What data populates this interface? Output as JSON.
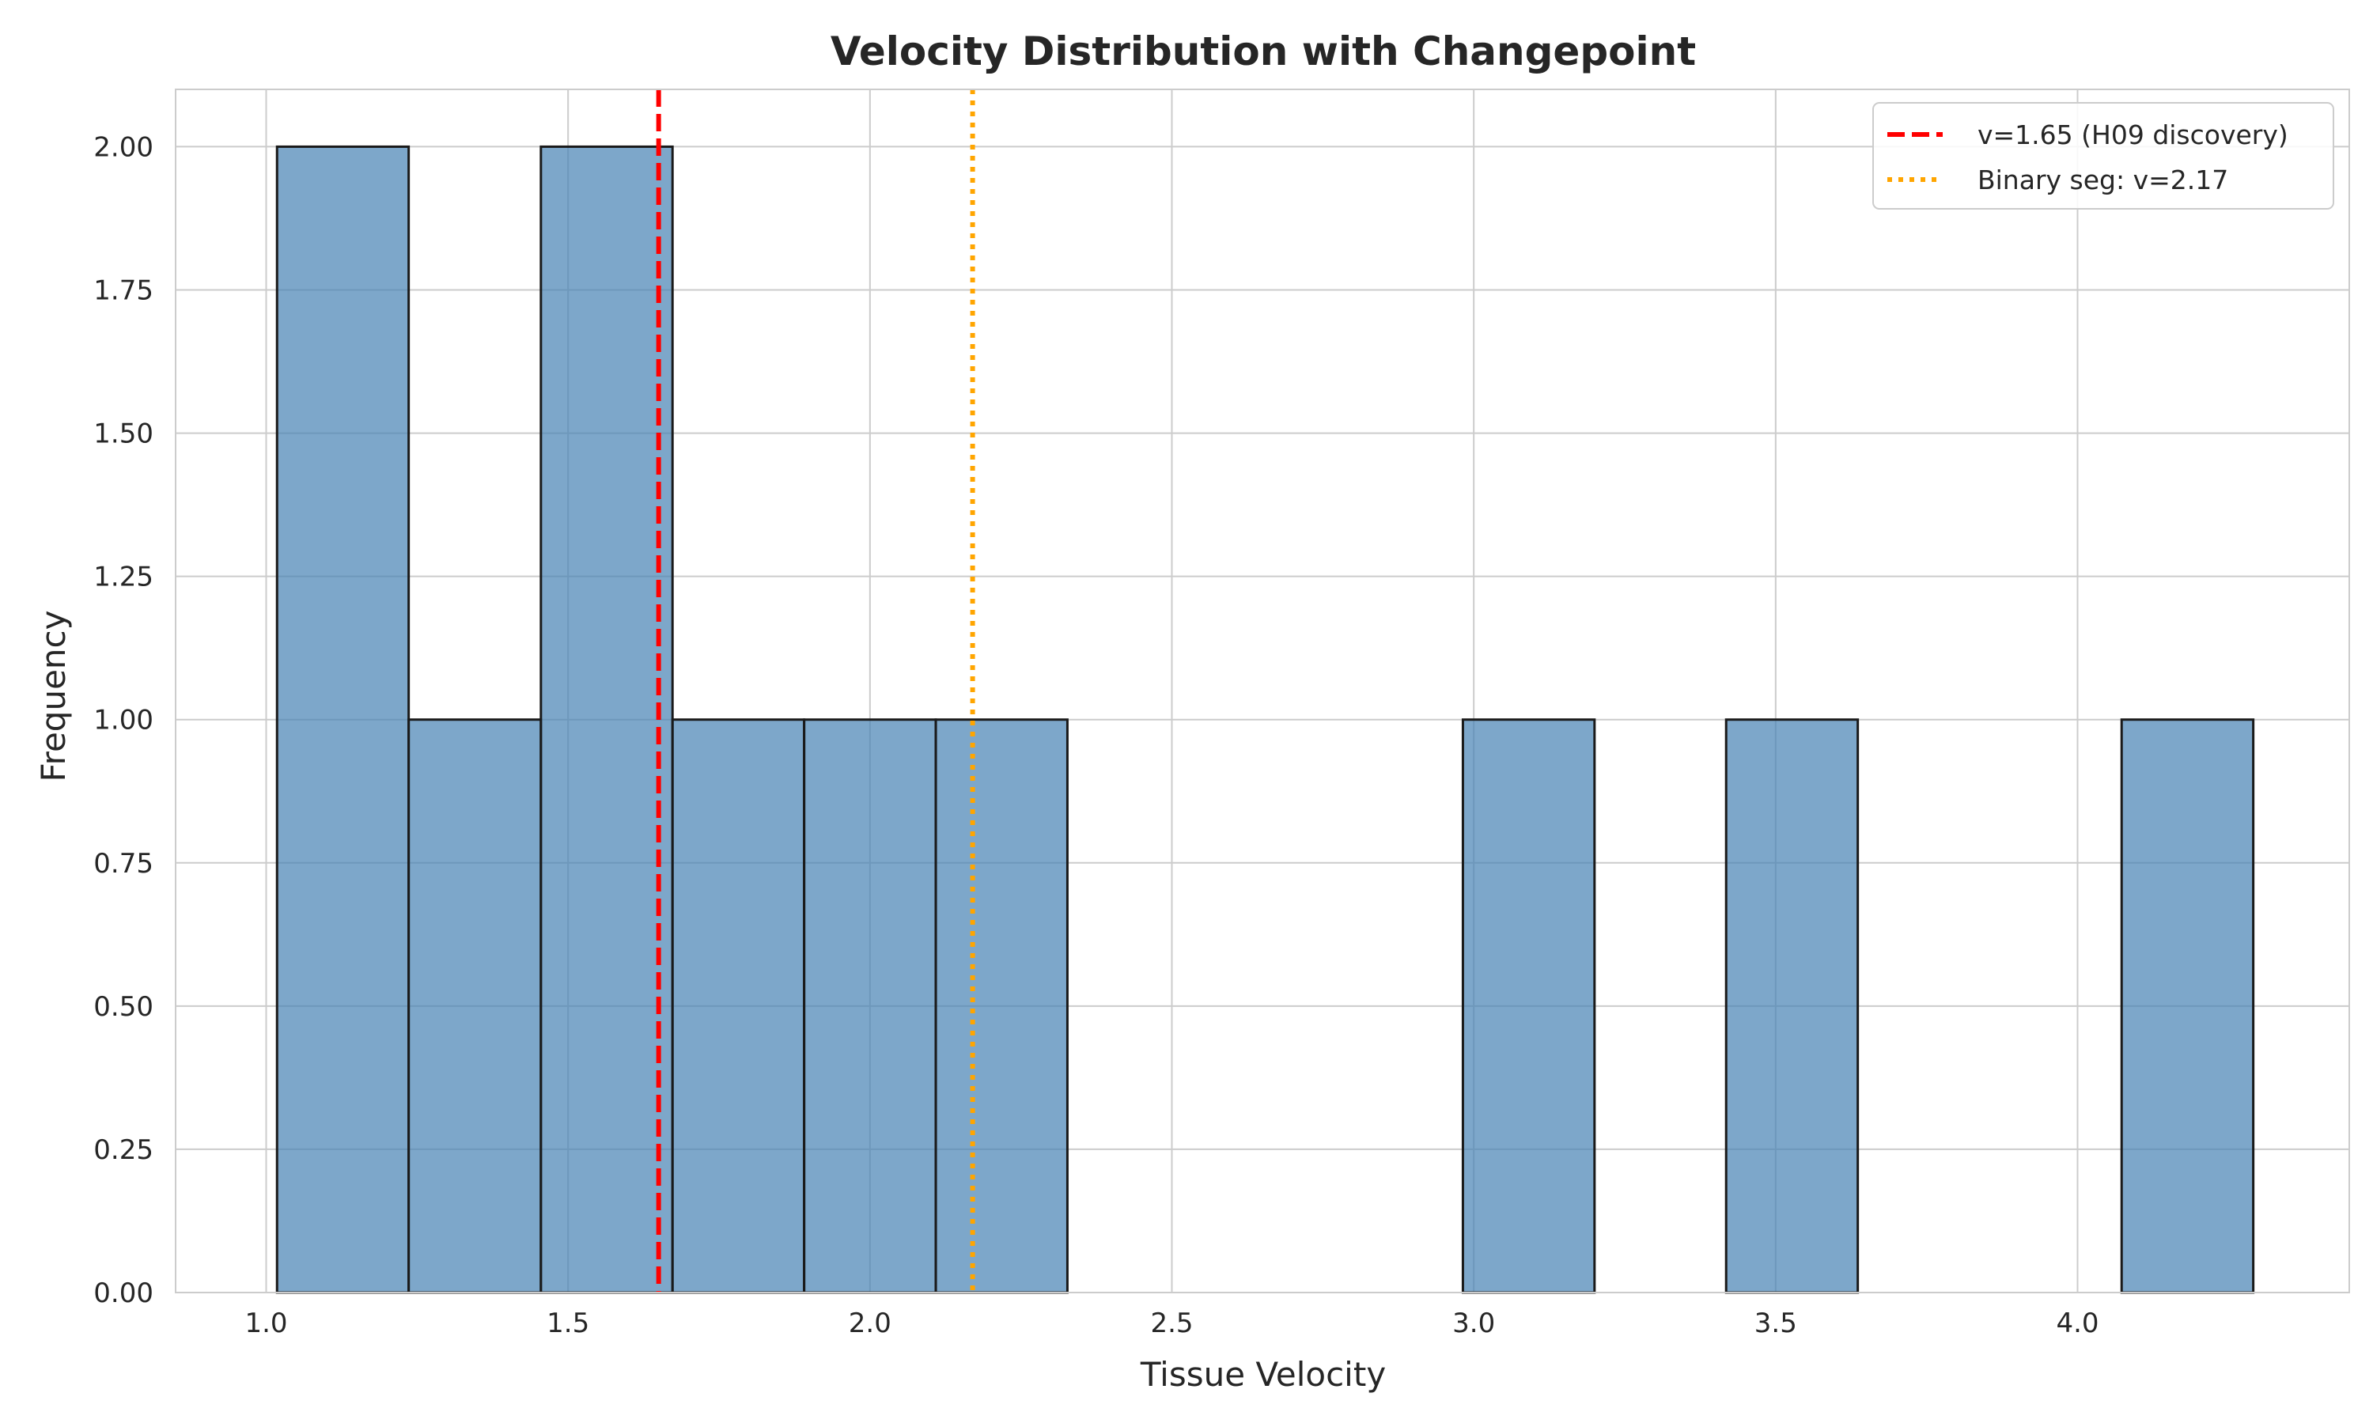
{
  "chart_data": {
    "type": "bar",
    "title": "Velocity Distribution with Changepoint",
    "xlabel": "Tissue Velocity",
    "ylabel": "Frequency",
    "xlim": [
      0.85,
      4.45
    ],
    "ylim": [
      0,
      2.1
    ],
    "xticks": [
      "1.0",
      "1.5",
      "2.0",
      "2.5",
      "3.0",
      "3.5",
      "4.0"
    ],
    "yticks": [
      "0.00",
      "0.25",
      "0.50",
      "0.75",
      "1.00",
      "1.25",
      "1.50",
      "1.75",
      "2.00"
    ],
    "grid": true,
    "bar_color": "#4682b4",
    "bins": [
      {
        "x0": 1.018,
        "x1": 1.236,
        "count": 2
      },
      {
        "x0": 1.236,
        "x1": 1.455,
        "count": 1
      },
      {
        "x0": 1.455,
        "x1": 1.673,
        "count": 2
      },
      {
        "x0": 1.673,
        "x1": 1.891,
        "count": 1
      },
      {
        "x0": 1.891,
        "x1": 2.109,
        "count": 1
      },
      {
        "x0": 2.109,
        "x1": 2.327,
        "count": 1
      },
      {
        "x0": 2.327,
        "x1": 2.545,
        "count": 0
      },
      {
        "x0": 2.545,
        "x1": 2.764,
        "count": 0
      },
      {
        "x0": 2.764,
        "x1": 2.982,
        "count": 0
      },
      {
        "x0": 2.982,
        "x1": 3.2,
        "count": 1
      },
      {
        "x0": 3.2,
        "x1": 3.418,
        "count": 0
      },
      {
        "x0": 3.418,
        "x1": 3.636,
        "count": 1
      },
      {
        "x0": 3.636,
        "x1": 3.855,
        "count": 0
      },
      {
        "x0": 3.855,
        "x1": 4.073,
        "count": 0
      },
      {
        "x0": 4.073,
        "x1": 4.291,
        "count": 1
      }
    ],
    "vlines": [
      {
        "x": 1.65,
        "label": "v=1.65 (H09 discovery)",
        "color": "#ff0000",
        "style": "dashed"
      },
      {
        "x": 2.17,
        "label": "Binary seg: v=2.17",
        "color": "#ffa500",
        "style": "dotted"
      }
    ],
    "legend_position": "top-right"
  }
}
